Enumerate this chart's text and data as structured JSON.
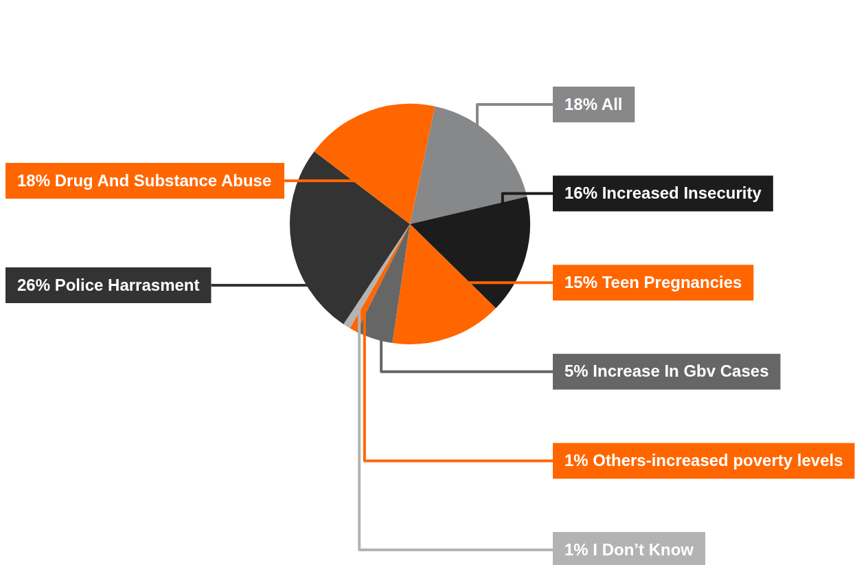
{
  "chart_data": {
    "type": "pie",
    "categories": [
      "All",
      "Increased Insecurity",
      "Teen Pregnancies",
      "Increase In Gbv Cases",
      "Others-increased poverty levels",
      "I Don’t Know",
      "Police Harrasment",
      "Drug And Substance Abuse"
    ],
    "values": [
      18,
      16,
      15,
      5,
      1,
      1,
      26,
      18
    ],
    "value_labels": [
      "18%",
      "16%",
      "15%",
      "5%",
      "1%",
      "1%",
      "26%",
      "18%"
    ],
    "colors": [
      "#87888a",
      "#1c1c1c",
      "#ff6600",
      "#666666",
      "#ff6600",
      "#b3b3b3",
      "#333333",
      "#ff6600"
    ],
    "legend": false
  }
}
